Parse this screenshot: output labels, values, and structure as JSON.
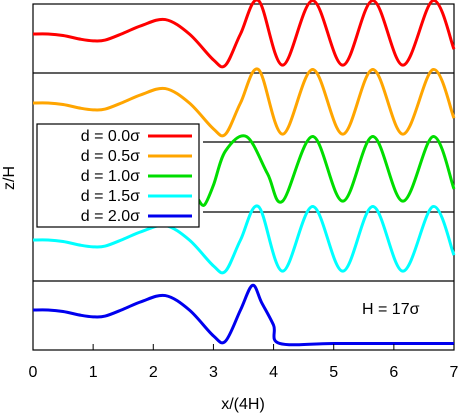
{
  "chart_data": {
    "type": "line",
    "xlabel": "x/(4H)",
    "ylabel": "z/H",
    "xlim": [
      0,
      7
    ],
    "x_ticks": [
      "0",
      "1",
      "2",
      "3",
      "4",
      "5",
      "6",
      "7"
    ],
    "annotation": "H = 17σ",
    "legend_position": "left",
    "grid": false,
    "series": [
      {
        "name": "d = 0.0σ",
        "color": "#ff0000",
        "points": [
          [
            0,
            0.0
          ],
          [
            0.25,
            0.0
          ],
          [
            0.5,
            -0.04
          ],
          [
            0.8,
            -0.14
          ],
          [
            1.0,
            -0.18
          ],
          [
            1.2,
            -0.16
          ],
          [
            1.5,
            0.02
          ],
          [
            1.8,
            0.22
          ],
          [
            2.2,
            0.38
          ],
          [
            2.6,
            0.0
          ],
          [
            3.0,
            -0.68
          ],
          [
            3.2,
            -0.82
          ],
          [
            3.45,
            0.0
          ],
          [
            3.75,
            0.88
          ],
          [
            4.15,
            -0.82
          ],
          [
            4.65,
            0.88
          ],
          [
            5.15,
            -0.82
          ],
          [
            5.65,
            0.88
          ],
          [
            6.15,
            -0.82
          ],
          [
            6.65,
            0.88
          ],
          [
            7.0,
            -0.4
          ]
        ]
      },
      {
        "name": "d = 0.5σ",
        "color": "#ffa500",
        "points": [
          [
            0,
            0.0
          ],
          [
            0.25,
            0.0
          ],
          [
            0.5,
            -0.04
          ],
          [
            0.8,
            -0.14
          ],
          [
            1.0,
            -0.18
          ],
          [
            1.2,
            -0.16
          ],
          [
            1.5,
            0.02
          ],
          [
            1.8,
            0.22
          ],
          [
            2.2,
            0.38
          ],
          [
            2.6,
            0.0
          ],
          [
            3.0,
            -0.68
          ],
          [
            3.2,
            -0.82
          ],
          [
            3.45,
            0.0
          ],
          [
            3.75,
            0.88
          ],
          [
            4.15,
            -0.82
          ],
          [
            4.65,
            0.88
          ],
          [
            5.15,
            -0.82
          ],
          [
            5.65,
            0.88
          ],
          [
            6.15,
            -0.82
          ],
          [
            6.65,
            0.88
          ],
          [
            7.0,
            -0.4
          ]
        ]
      },
      {
        "name": "d = 1.0σ",
        "color": "#00dd00",
        "points": [
          [
            2.75,
            -0.78
          ],
          [
            2.85,
            -0.92
          ],
          [
            3.0,
            -0.4
          ],
          [
            3.2,
            0.5
          ],
          [
            3.55,
            0.88
          ],
          [
            3.9,
            -0.1
          ],
          [
            4.15,
            -0.82
          ],
          [
            4.65,
            0.88
          ],
          [
            5.15,
            -0.82
          ],
          [
            5.65,
            0.88
          ],
          [
            6.15,
            -0.82
          ],
          [
            6.65,
            0.88
          ],
          [
            7.0,
            -0.5
          ]
        ]
      },
      {
        "name": "d = 1.5σ",
        "color": "#00ffff",
        "points": [
          [
            0,
            0.0
          ],
          [
            0.25,
            0.0
          ],
          [
            0.5,
            -0.04
          ],
          [
            0.8,
            -0.14
          ],
          [
            1.0,
            -0.18
          ],
          [
            1.2,
            -0.16
          ],
          [
            1.5,
            0.02
          ],
          [
            1.8,
            0.22
          ],
          [
            2.2,
            0.38
          ],
          [
            2.6,
            0.0
          ],
          [
            3.0,
            -0.68
          ],
          [
            3.2,
            -0.82
          ],
          [
            3.45,
            0.0
          ],
          [
            3.75,
            0.88
          ],
          [
            4.15,
            -0.82
          ],
          [
            4.65,
            0.88
          ],
          [
            5.15,
            -0.82
          ],
          [
            5.65,
            0.88
          ],
          [
            6.15,
            -0.82
          ],
          [
            6.65,
            0.88
          ],
          [
            7.0,
            -0.4
          ]
        ]
      },
      {
        "name": "d = 2.0σ",
        "color": "#0000ee",
        "points": [
          [
            0,
            0.0
          ],
          [
            0.25,
            0.0
          ],
          [
            0.5,
            -0.04
          ],
          [
            0.8,
            -0.14
          ],
          [
            1.0,
            -0.18
          ],
          [
            1.2,
            -0.16
          ],
          [
            1.5,
            0.02
          ],
          [
            1.8,
            0.22
          ],
          [
            2.2,
            0.38
          ],
          [
            2.6,
            0.0
          ],
          [
            3.0,
            -0.68
          ],
          [
            3.2,
            -0.82
          ],
          [
            3.45,
            0.0
          ],
          [
            3.65,
            0.65
          ],
          [
            3.8,
            0.2
          ],
          [
            4.0,
            -0.4
          ],
          [
            4.1,
            -0.88
          ],
          [
            5.0,
            -0.88
          ],
          [
            6.0,
            -0.88
          ],
          [
            7.0,
            -0.88
          ]
        ]
      }
    ]
  }
}
